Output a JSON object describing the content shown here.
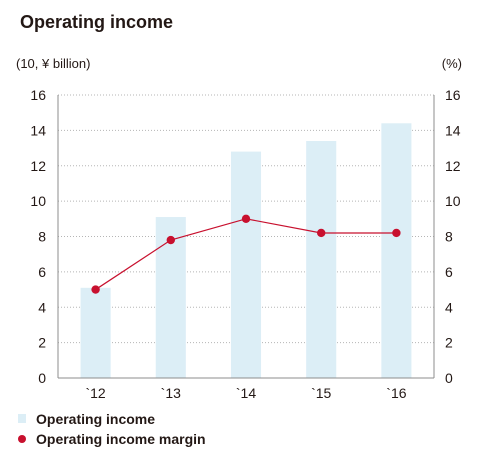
{
  "chart_data": {
    "type": "bar",
    "title": "Operating income",
    "ylabel_left": "(10, ¥ billion)",
    "ylabel_right": "(%)",
    "categories": [
      "`12",
      "`13",
      "`14",
      "`15",
      "`16"
    ],
    "yticks": [
      0,
      2,
      4,
      6,
      8,
      10,
      12,
      14,
      16
    ],
    "ylim": [
      0,
      16
    ],
    "ylim_right": [
      0,
      16
    ],
    "grid": true,
    "legend_position": "bottom-left",
    "series": [
      {
        "name": "Operating income",
        "kind": "bar",
        "axis": "left",
        "color": "#dceef6",
        "values": [
          5.1,
          9.1,
          12.8,
          13.4,
          14.4
        ]
      },
      {
        "name": "Operating income margin",
        "kind": "line",
        "axis": "right",
        "color": "#c8102e",
        "values": [
          5.0,
          7.8,
          9.0,
          8.2,
          8.2
        ]
      }
    ]
  }
}
